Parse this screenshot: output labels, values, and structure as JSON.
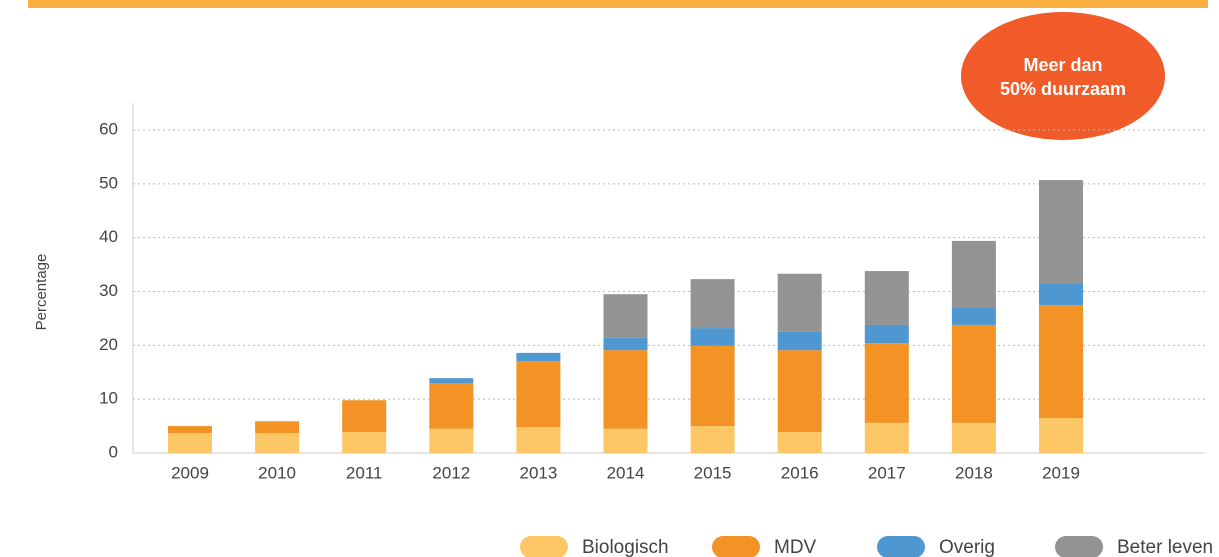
{
  "chart_data": {
    "type": "stacked_bar",
    "y_label": "Percentage",
    "annotation": [
      "Meer dan",
      "50% duurzaam"
    ],
    "categories": [
      "2009",
      "2010",
      "2011",
      "2012",
      "2013",
      "2014",
      "2015",
      "2016",
      "2017",
      "2018",
      "2019"
    ],
    "series": [
      {
        "name": "Biologisch",
        "color": "#fdc765",
        "values": [
          3.7,
          3.7,
          3.9,
          4.5,
          4.8,
          4.5,
          5.0,
          3.9,
          5.6,
          5.6,
          6.5
        ]
      },
      {
        "name": "MDV",
        "color": "#f39325",
        "values": [
          1.3,
          2.2,
          5.9,
          8.5,
          12.3,
          14.6,
          14.9,
          15.2,
          14.8,
          18.2,
          21.0
        ]
      },
      {
        "name": "Overig",
        "color": "#4f97d1",
        "values": [
          0,
          0,
          0,
          0.9,
          1.5,
          2.3,
          3.3,
          3.4,
          3.4,
          3.3,
          3.9
        ]
      },
      {
        "name": "Beter leven",
        "color": "#939393",
        "values": [
          0,
          0,
          0,
          0,
          0,
          8.1,
          9.1,
          10.8,
          10.0,
          12.3,
          19.3
        ]
      }
    ],
    "ylim": [
      0,
      60
    ],
    "yticks": [
      0,
      10,
      20,
      30,
      40,
      50,
      60
    ],
    "grid": true,
    "legend": "bottom"
  }
}
